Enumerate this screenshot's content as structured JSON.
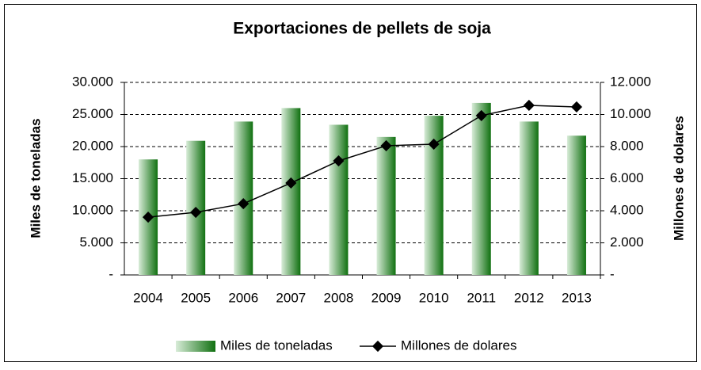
{
  "chart_data": {
    "type": "bar-line",
    "title": "Exportaciones de pellets de soja",
    "y_label": "Miles de toneladas",
    "y2_label": "Millones de dolares",
    "categories": [
      "2004",
      "2005",
      "2006",
      "2007",
      "2008",
      "2009",
      "2010",
      "2011",
      "2012",
      "2013"
    ],
    "series": [
      {
        "name": "Miles de toneladas",
        "type": "bar",
        "color": "#107010",
        "values": [
          18000,
          20900,
          23900,
          26000,
          23400,
          21500,
          24800,
          26800,
          23900,
          21700
        ]
      },
      {
        "name": "Millones de dolares",
        "type": "line",
        "axis": "y2",
        "color": "#000000",
        "values": [
          3600,
          3900,
          4440,
          5730,
          7110,
          8050,
          8150,
          9930,
          10570,
          10470
        ]
      }
    ],
    "ylim": [
      0,
      30000
    ],
    "yticks": [
      {
        "value": 0,
        "label": "-"
      },
      {
        "value": 5000,
        "label": "5.000"
      },
      {
        "value": 10000,
        "label": "10.000"
      },
      {
        "value": 15000,
        "label": "15.000"
      },
      {
        "value": 20000,
        "label": "20.000"
      },
      {
        "value": 25000,
        "label": "25.000"
      },
      {
        "value": 30000,
        "label": "30.000"
      }
    ],
    "y2lim": [
      0,
      12000
    ],
    "y2ticks": [
      {
        "value": 0,
        "label": "-"
      },
      {
        "value": 2000,
        "label": "2.000"
      },
      {
        "value": 4000,
        "label": "4.000"
      },
      {
        "value": 6000,
        "label": "6.000"
      },
      {
        "value": 8000,
        "label": "8.000"
      },
      {
        "value": 10000,
        "label": "10.000"
      },
      {
        "value": 12000,
        "label": "12.000"
      }
    ],
    "grid": true,
    "legend": "bottom"
  }
}
